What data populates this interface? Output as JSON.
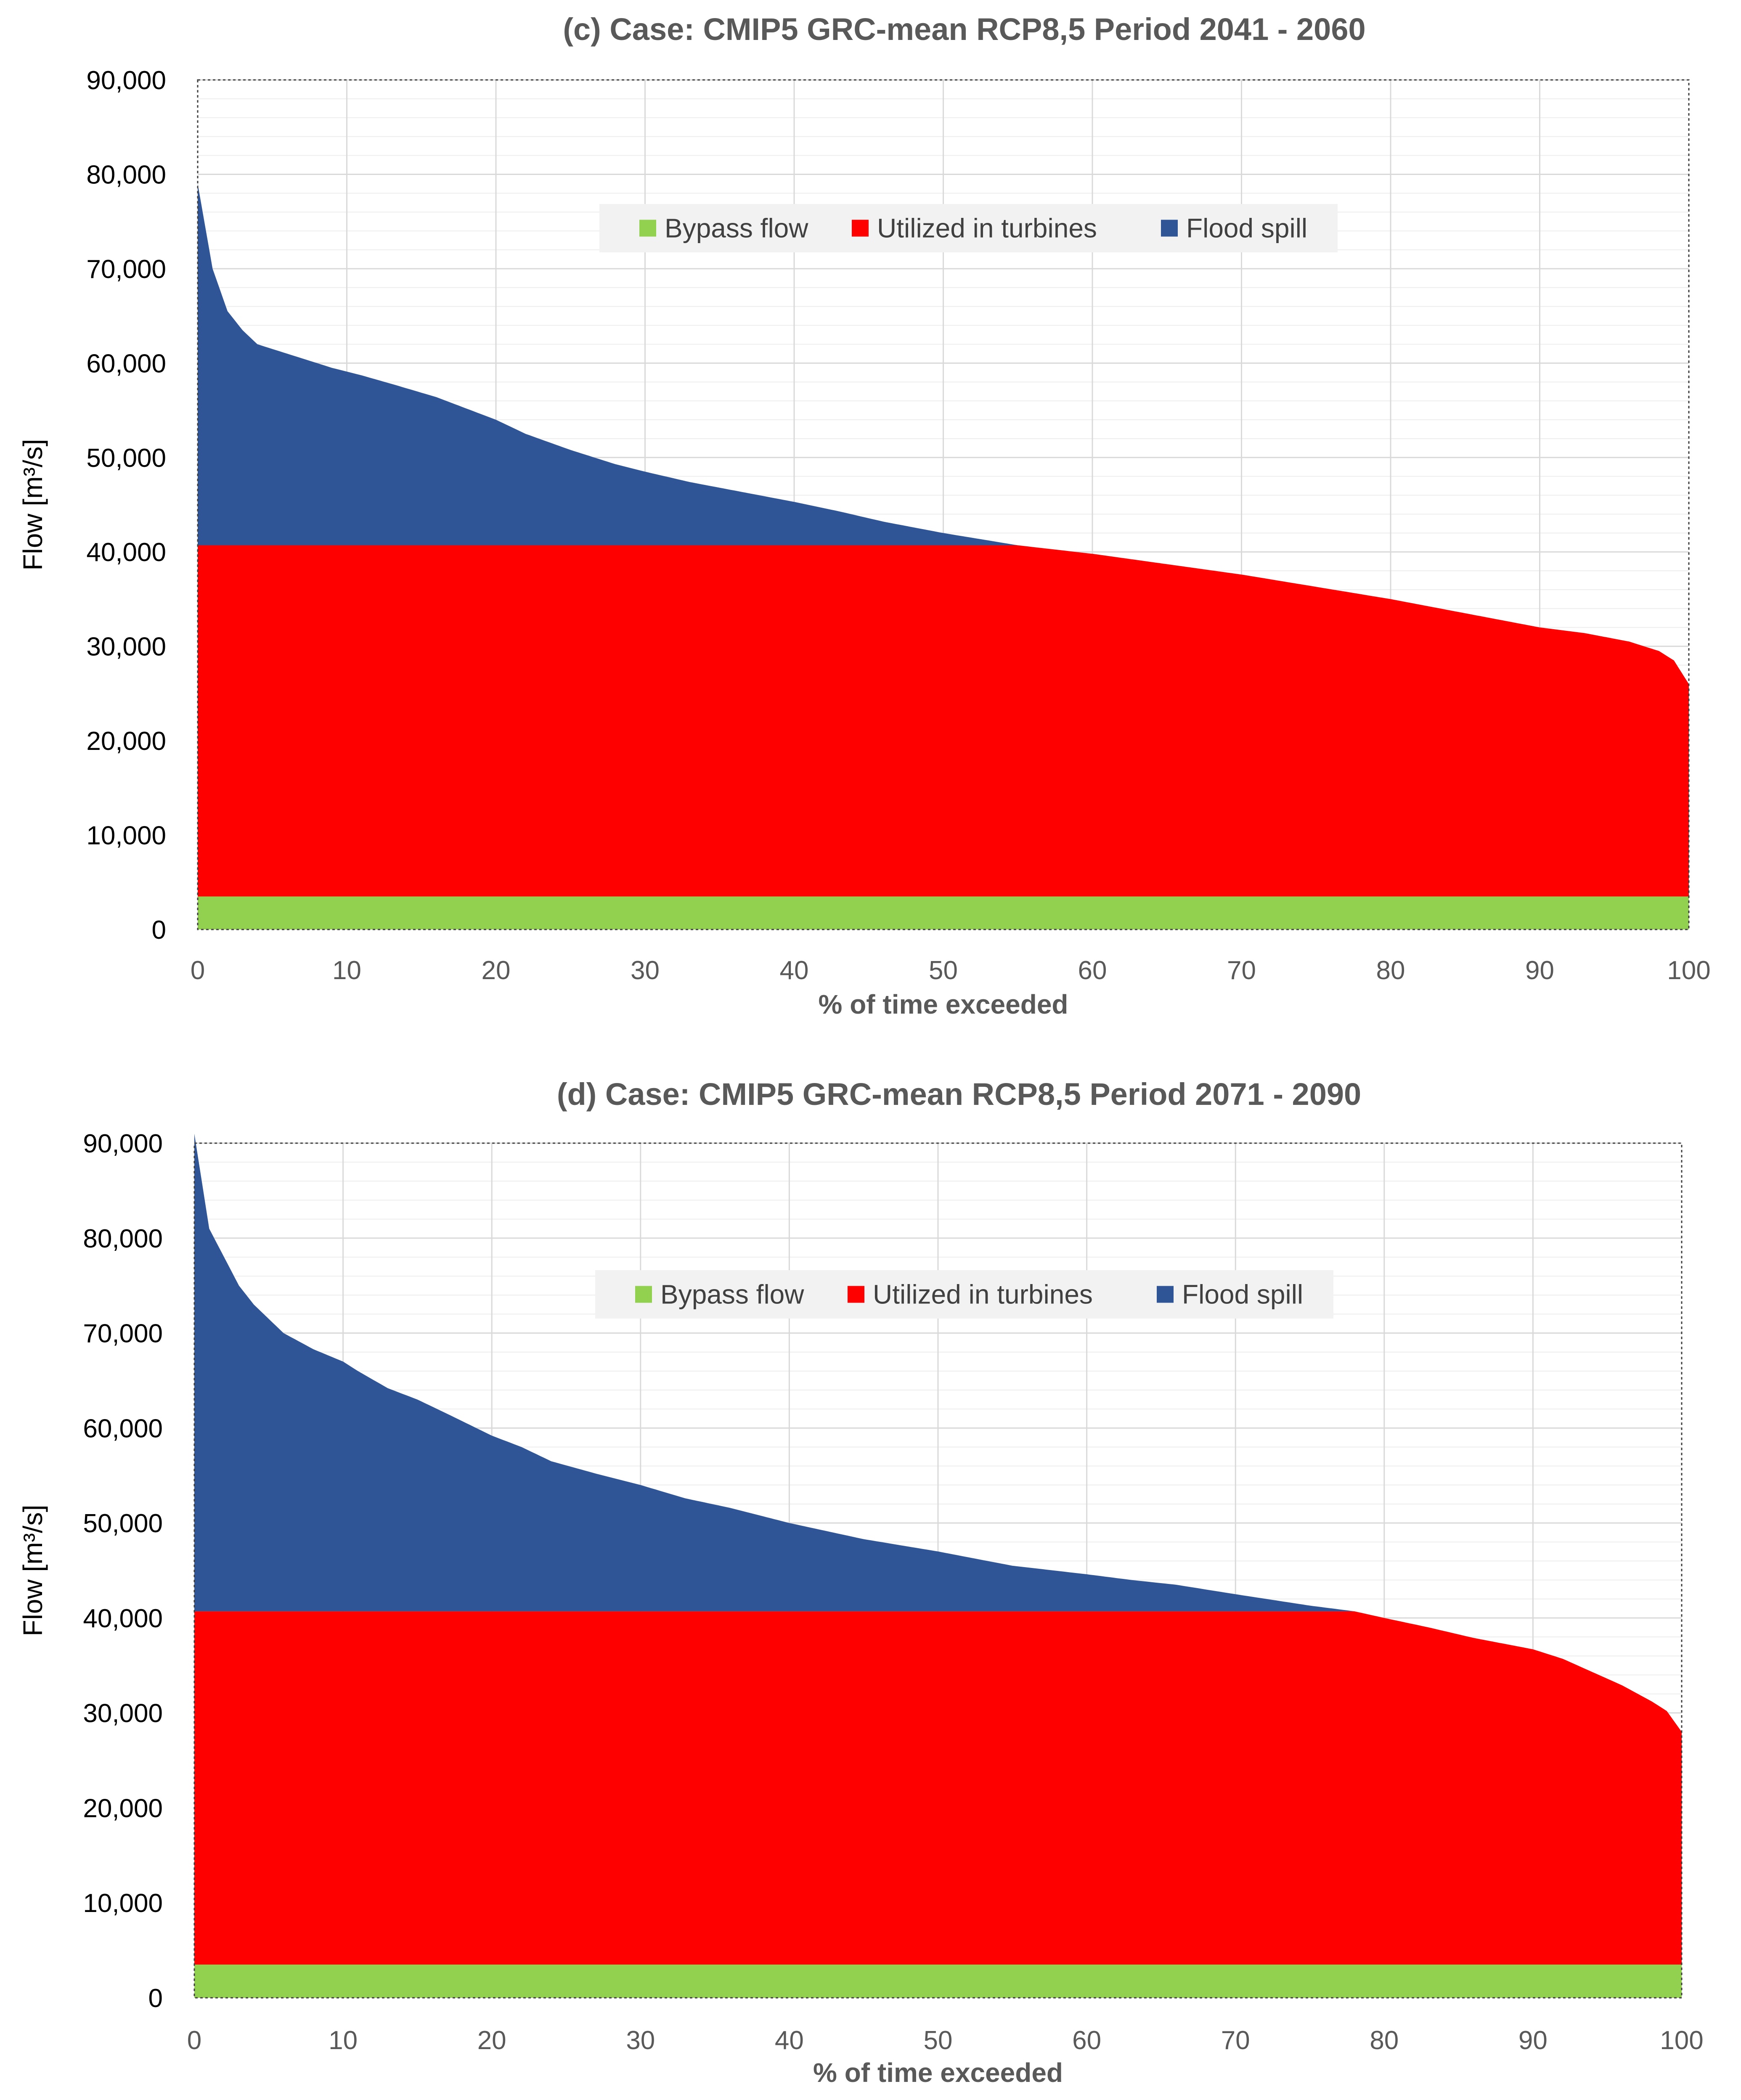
{
  "chart_data": [
    {
      "type": "area",
      "stacked": true,
      "title": "(c)  Case: CMIP5 GRC-mean  RCP8,5  Period 2041 - 2060",
      "xlabel": "% of time exceeded",
      "ylabel": "Flow [m³/s]",
      "xlim": [
        0,
        100
      ],
      "ylim": [
        0,
        90000
      ],
      "x_ticks": [
        0,
        10,
        20,
        30,
        40,
        50,
        60,
        70,
        80,
        90,
        100
      ],
      "x_tick_labels": [
        "0",
        "10",
        "20",
        "30",
        "40",
        "50",
        "60",
        "70",
        "80",
        "90",
        "100"
      ],
      "y_ticks": [
        0,
        10000,
        20000,
        30000,
        40000,
        50000,
        60000,
        70000,
        80000,
        90000
      ],
      "y_tick_labels": [
        "0",
        "10,000",
        "20,000",
        "30,000",
        "40,000",
        "50,000",
        "60,000",
        "70,000",
        "80,000",
        "90,000"
      ],
      "grid": true,
      "legend_position": "top-center",
      "colors": {
        "bypass": "#92d050",
        "turbines": "#ff0000",
        "spill": "#2f5597"
      },
      "series": [
        {
          "name": "Bypass flow",
          "color": "#92d050",
          "constant": 3500
        },
        {
          "name": "Utilized in turbines",
          "color": "#ff0000",
          "cap": 40700
        },
        {
          "name": "Flood spill",
          "color": "#2f5597"
        }
      ],
      "total_flow_curve": {
        "x": [
          0,
          1,
          2,
          3,
          4,
          5,
          7,
          9,
          11,
          13,
          16,
          18,
          20,
          22,
          25,
          28,
          30,
          33,
          36,
          40,
          43,
          46,
          50,
          55,
          60,
          65,
          70,
          75,
          80,
          85,
          90,
          93,
          96,
          98,
          99,
          100
        ],
        "y": [
          79000,
          70000,
          65500,
          63500,
          62000,
          61500,
          60500,
          59500,
          58700,
          57800,
          56400,
          55200,
          54000,
          52500,
          50800,
          49300,
          48500,
          47400,
          46500,
          45300,
          44300,
          43200,
          42000,
          40700,
          39800,
          38700,
          37600,
          36300,
          35000,
          33500,
          32000,
          31400,
          30500,
          29500,
          28500,
          26000
        ]
      }
    },
    {
      "type": "area",
      "stacked": true,
      "title": "(d)  Case: CMIP5 GRC-mean  RCP8,5  Period 2071 - 2090",
      "xlabel": "% of time exceeded",
      "ylabel": "Flow [m³/s]",
      "xlim": [
        0,
        100
      ],
      "ylim": [
        0,
        90000
      ],
      "x_ticks": [
        0,
        10,
        20,
        30,
        40,
        50,
        60,
        70,
        80,
        90,
        100
      ],
      "x_tick_labels": [
        "0",
        "10",
        "20",
        "30",
        "40",
        "50",
        "60",
        "70",
        "80",
        "90",
        "100"
      ],
      "y_ticks": [
        0,
        10000,
        20000,
        30000,
        40000,
        50000,
        60000,
        70000,
        80000,
        90000
      ],
      "y_tick_labels": [
        "0",
        "10,000",
        "20,000",
        "30,000",
        "40,000",
        "50,000",
        "60,000",
        "70,000",
        "80,000",
        "90,000"
      ],
      "grid": true,
      "legend_position": "top-center",
      "colors": {
        "bypass": "#92d050",
        "turbines": "#ff0000",
        "spill": "#2f5597"
      },
      "series": [
        {
          "name": "Bypass flow",
          "color": "#92d050",
          "constant": 3500
        },
        {
          "name": "Utilized in turbines",
          "color": "#ff0000",
          "cap": 40700
        },
        {
          "name": "Flood spill",
          "color": "#2f5597"
        }
      ],
      "total_flow_curve": {
        "x": [
          0,
          1,
          2,
          3,
          4,
          6,
          8,
          10,
          11,
          13,
          15,
          17,
          20,
          22,
          24,
          27,
          30,
          33,
          36,
          40,
          45,
          50,
          55,
          60,
          63,
          66,
          70,
          75,
          78,
          80,
          83,
          86,
          90,
          92,
          94,
          96,
          98,
          99,
          100
        ],
        "y": [
          91000,
          81000,
          78000,
          75000,
          73000,
          70000,
          68300,
          67000,
          66000,
          64200,
          63000,
          61500,
          59200,
          58000,
          56500,
          55200,
          54000,
          52600,
          51600,
          50000,
          48300,
          47000,
          45500,
          44600,
          44000,
          43500,
          42500,
          41300,
          40700,
          40000,
          39000,
          37900,
          36700,
          35700,
          34300,
          32900,
          31200,
          30200,
          28000
        ]
      }
    }
  ]
}
